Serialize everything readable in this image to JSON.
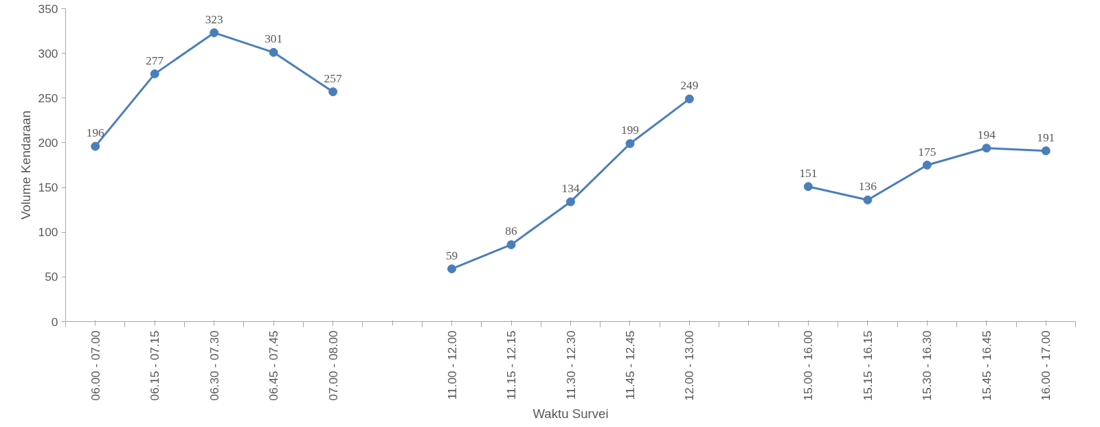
{
  "chart_data": {
    "type": "line",
    "xlabel": "Waktu Survei",
    "ylabel": "Volume Kendaraan",
    "categories": [
      "06.00 - 07.00",
      "06.15 - 07.15",
      "06.30 - 07.30",
      "06.45 - 07.45",
      "07.00 - 08.00",
      null,
      "11.00 - 12.00",
      "11.15 - 12.15",
      "11.30 - 12.30",
      "11.45 - 12.45",
      "12.00 - 13.00",
      null,
      "15.00 - 16.00",
      "15.15 - 16.15",
      "15.30 - 16.30",
      "15.45 - 16.45",
      "16.00 - 17.00"
    ],
    "series": [
      {
        "color": "#4a7ebb",
        "values": [
          196,
          277,
          323,
          301,
          257,
          null,
          59,
          86,
          134,
          199,
          249,
          null,
          151,
          136,
          175,
          194,
          191
        ]
      }
    ],
    "ylim": [
      0,
      350
    ],
    "yticks": [
      0,
      50,
      100,
      150,
      200,
      250,
      300,
      350
    ],
    "data_labels": true,
    "grid": false,
    "marker": "circle",
    "line_style": "solid"
  }
}
